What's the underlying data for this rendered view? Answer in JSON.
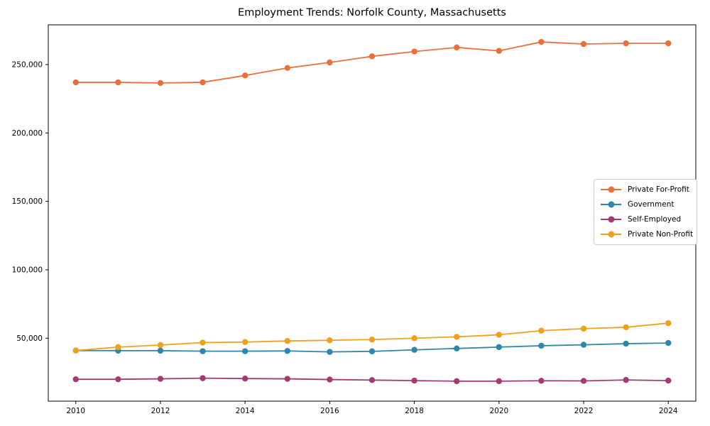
{
  "chart_data": {
    "type": "line",
    "title": "Employment Trends: Norfolk County, Massachusetts",
    "xlabel": "",
    "ylabel": "",
    "grid": false,
    "legend_position": "center-right",
    "x": [
      2010,
      2011,
      2012,
      2013,
      2014,
      2015,
      2016,
      2017,
      2018,
      2019,
      2020,
      2021,
      2022,
      2023,
      2024
    ],
    "xticks": [
      2010,
      2012,
      2014,
      2016,
      2018,
      2020,
      2022,
      2024
    ],
    "yticks": [
      50000,
      100000,
      150000,
      200000,
      250000
    ],
    "xlim": [
      2009.35,
      2024.65
    ],
    "ylim": [
      4000,
      279000
    ],
    "axis_color": "#000000",
    "series": [
      {
        "name": "Private For-Profit",
        "color": "#E8713A",
        "values": [
          237000,
          237000,
          236500,
          237000,
          242000,
          247500,
          251500,
          256000,
          259500,
          262500,
          260000,
          266500,
          265000,
          265500,
          265500
        ]
      },
      {
        "name": "Government",
        "color": "#2E86AB",
        "values": [
          41000,
          40900,
          40900,
          40500,
          40500,
          40700,
          40000,
          40400,
          41500,
          42500,
          43500,
          44500,
          45200,
          46000,
          46500
        ]
      },
      {
        "name": "Self-Employed",
        "color": "#A23B72",
        "values": [
          20000,
          20000,
          20300,
          20800,
          20500,
          20300,
          19800,
          19400,
          19000,
          18600,
          18600,
          18900,
          18800,
          19500,
          19000
        ]
      },
      {
        "name": "Private Non-Profit",
        "color": "#F0A01B",
        "values": [
          41000,
          43500,
          45000,
          46800,
          47200,
          48000,
          48500,
          49000,
          50000,
          51000,
          52500,
          55500,
          57000,
          58000,
          61000
        ]
      }
    ]
  }
}
